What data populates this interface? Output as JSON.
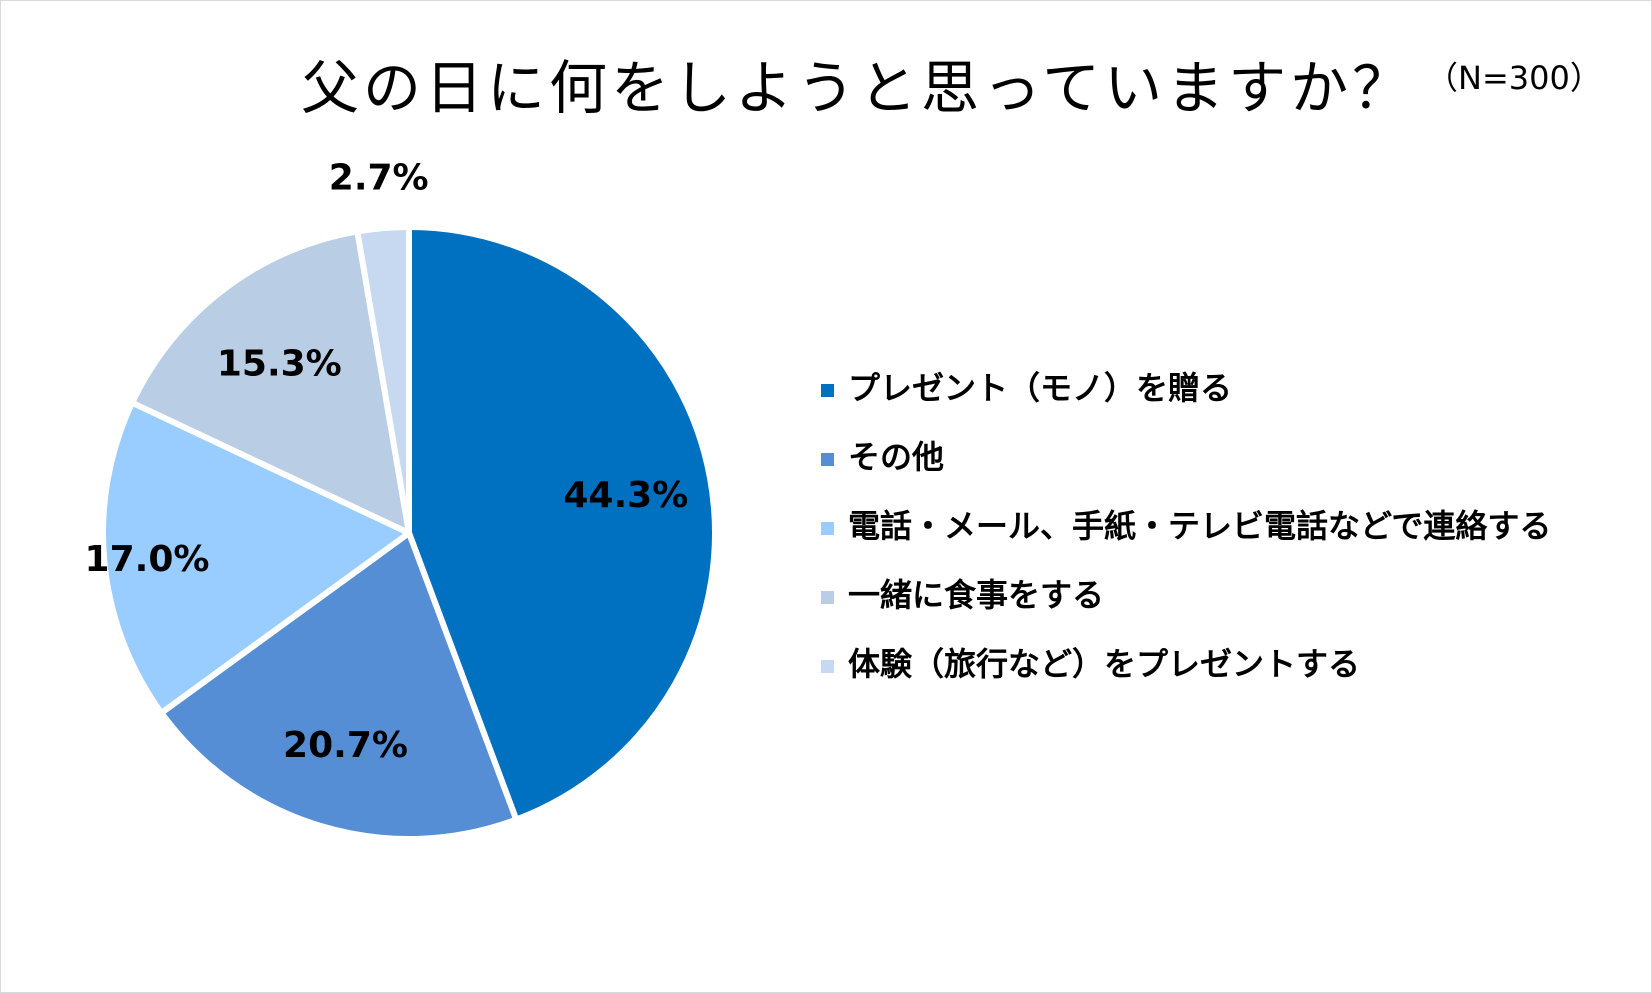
{
  "chart_data": {
    "type": "pie",
    "title": "父の日に何をしようと思っていますか？",
    "sample_size": "（N=300）",
    "value_suffix": "%",
    "slices": [
      {
        "label": "プレゼント（モノ）を贈る",
        "value": 44.3,
        "display": "44.3%",
        "color": "#0070C0"
      },
      {
        "label": "その他",
        "value": 20.7,
        "display": "20.7%",
        "color": "#558ED5"
      },
      {
        "label": "電話・メール、手紙・テレビ電話などで連絡する",
        "value": 17.0,
        "display": "17.0%",
        "color": "#99CCFF"
      },
      {
        "label": "一緒に食事をする",
        "value": 15.3,
        "display": "15.3%",
        "color": "#B9CDE5"
      },
      {
        "label": "体験（旅行など）をプレゼントする",
        "value": 2.7,
        "display": "2.7%",
        "color": "#C6D9F1"
      }
    ],
    "legend_position": "right"
  }
}
